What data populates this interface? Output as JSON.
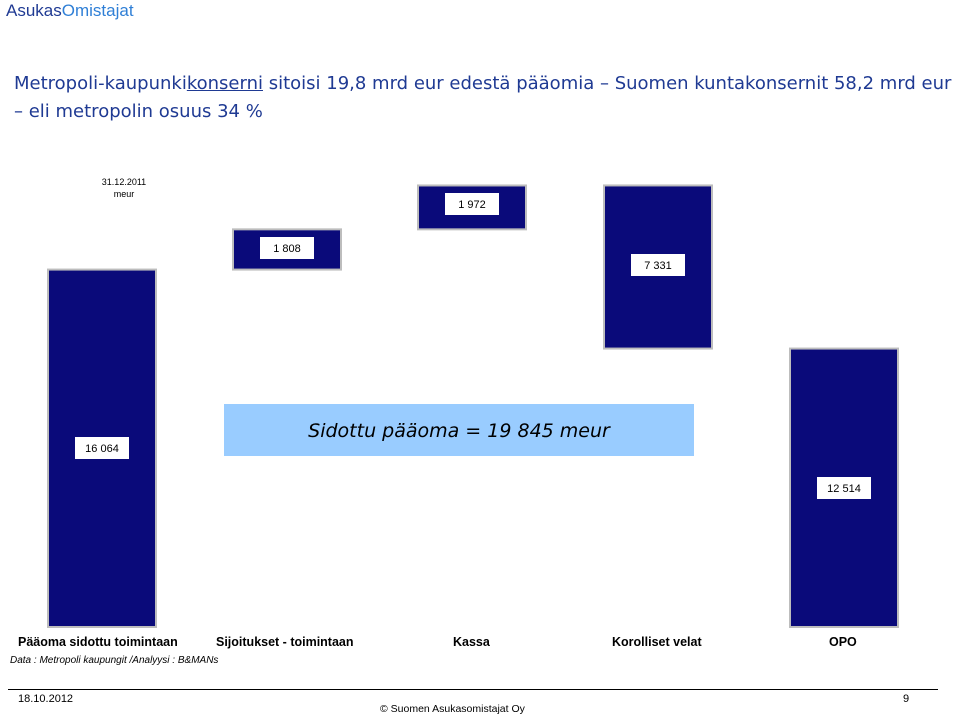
{
  "brand": {
    "part1": "Asukas",
    "part2": "Omistajat"
  },
  "headline": {
    "line1_pre": "Metropoli-kaupunki",
    "line1_underlined": "konserni",
    "line1_post": " sitoisi 19,8 mrd eur edestä pääomia – Suomen kuntakonsernit 58,2 mrd eur",
    "line2": "– eli metropolin osuus 34 %"
  },
  "date_label": "31.12.2011",
  "unit_label": "meur",
  "chart_data": {
    "type": "bar",
    "categories": [
      "Pääoma sidottu toimintaan",
      "Sijoitukset - toimintaan",
      "Kassa",
      "Korolliset velat",
      "OPO"
    ],
    "values": [
      16064,
      1808,
      1972,
      7331,
      12514
    ],
    "value_labels": [
      "16 064",
      "1 808",
      "1 972",
      "7 331",
      "12 514"
    ],
    "ylim": [
      0,
      20000
    ],
    "bar_color": "#0a0a7a"
  },
  "annotation": {
    "text": "Sidottu pääoma  = 19 845 meur",
    "fill": "#99ccff"
  },
  "source_note": "Data : Metropoli kaupungit /Analyysi : B&MANs",
  "footer": {
    "date": "18.10.2012",
    "copyright": "© Suomen Asukasomistajat Oy",
    "page": "9"
  }
}
